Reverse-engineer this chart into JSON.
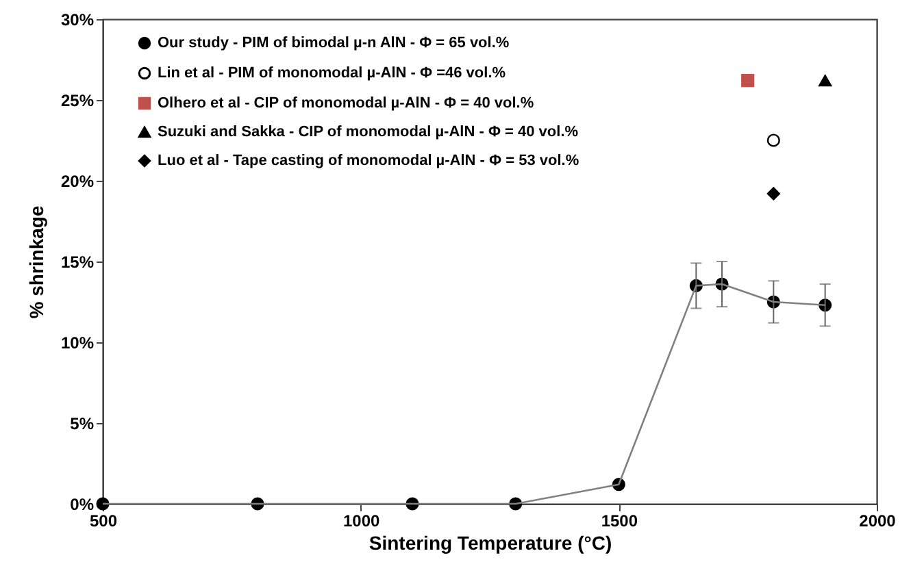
{
  "chart_data": {
    "type": "scatter",
    "xlabel": "Sintering Temperature (°C)",
    "ylabel": "% shrinkage",
    "xlim": [
      500,
      2000
    ],
    "xticks": [
      500,
      1000,
      1500,
      2000
    ],
    "ylim": [
      0,
      30
    ],
    "yticks": [
      {
        "value": 0,
        "label": "0%"
      },
      {
        "value": 5,
        "label": "5%"
      },
      {
        "value": 10,
        "label": "10%"
      },
      {
        "value": 15,
        "label": "15%"
      },
      {
        "value": 20,
        "label": "20%"
      },
      {
        "value": 25,
        "label": "25%"
      },
      {
        "value": 30,
        "label": "30%"
      }
    ],
    "grid": false,
    "legend": "top left",
    "series": [
      {
        "name": "Our study - PIM of bimodal µ-n AlN - Φ = 65 vol.%",
        "type": "line",
        "marker": "circle",
        "color": "#000000",
        "x": [
          500,
          800,
          1100,
          1300,
          1500,
          1650,
          1700,
          1800,
          1900
        ],
        "values": [
          0,
          0,
          0,
          0,
          1.2,
          13.5,
          13.6,
          12.5,
          12.3
        ],
        "errors": [
          null,
          null,
          null,
          null,
          null,
          1.4,
          1.4,
          1.3,
          1.3
        ]
      },
      {
        "name": "Lin et al - PIM of monomodal µ-AlN - Φ =46 vol.%",
        "marker": "circle",
        "color": "#ffffff",
        "x": [
          1800
        ],
        "values": [
          22.5
        ]
      },
      {
        "name": "Olhero et al - CIP of monomodal µ-AlN - Φ = 40 vol.%",
        "marker": "square",
        "color": "#c0504d",
        "x": [
          1750
        ],
        "values": [
          26.2
        ]
      },
      {
        "name": "Suzuki and Sakka - CIP of monomodal  µ-AlN - Φ = 40 vol.%",
        "marker": "triangle",
        "color": "#000000",
        "x": [
          1900
        ],
        "values": [
          26.2
        ]
      },
      {
        "name": "Luo et al - Tape casting of monomodal µ-AlN - Φ = 53 vol.%",
        "marker": "diamond",
        "color": "#000000",
        "x": [
          1800
        ],
        "values": [
          19.2
        ]
      }
    ]
  }
}
